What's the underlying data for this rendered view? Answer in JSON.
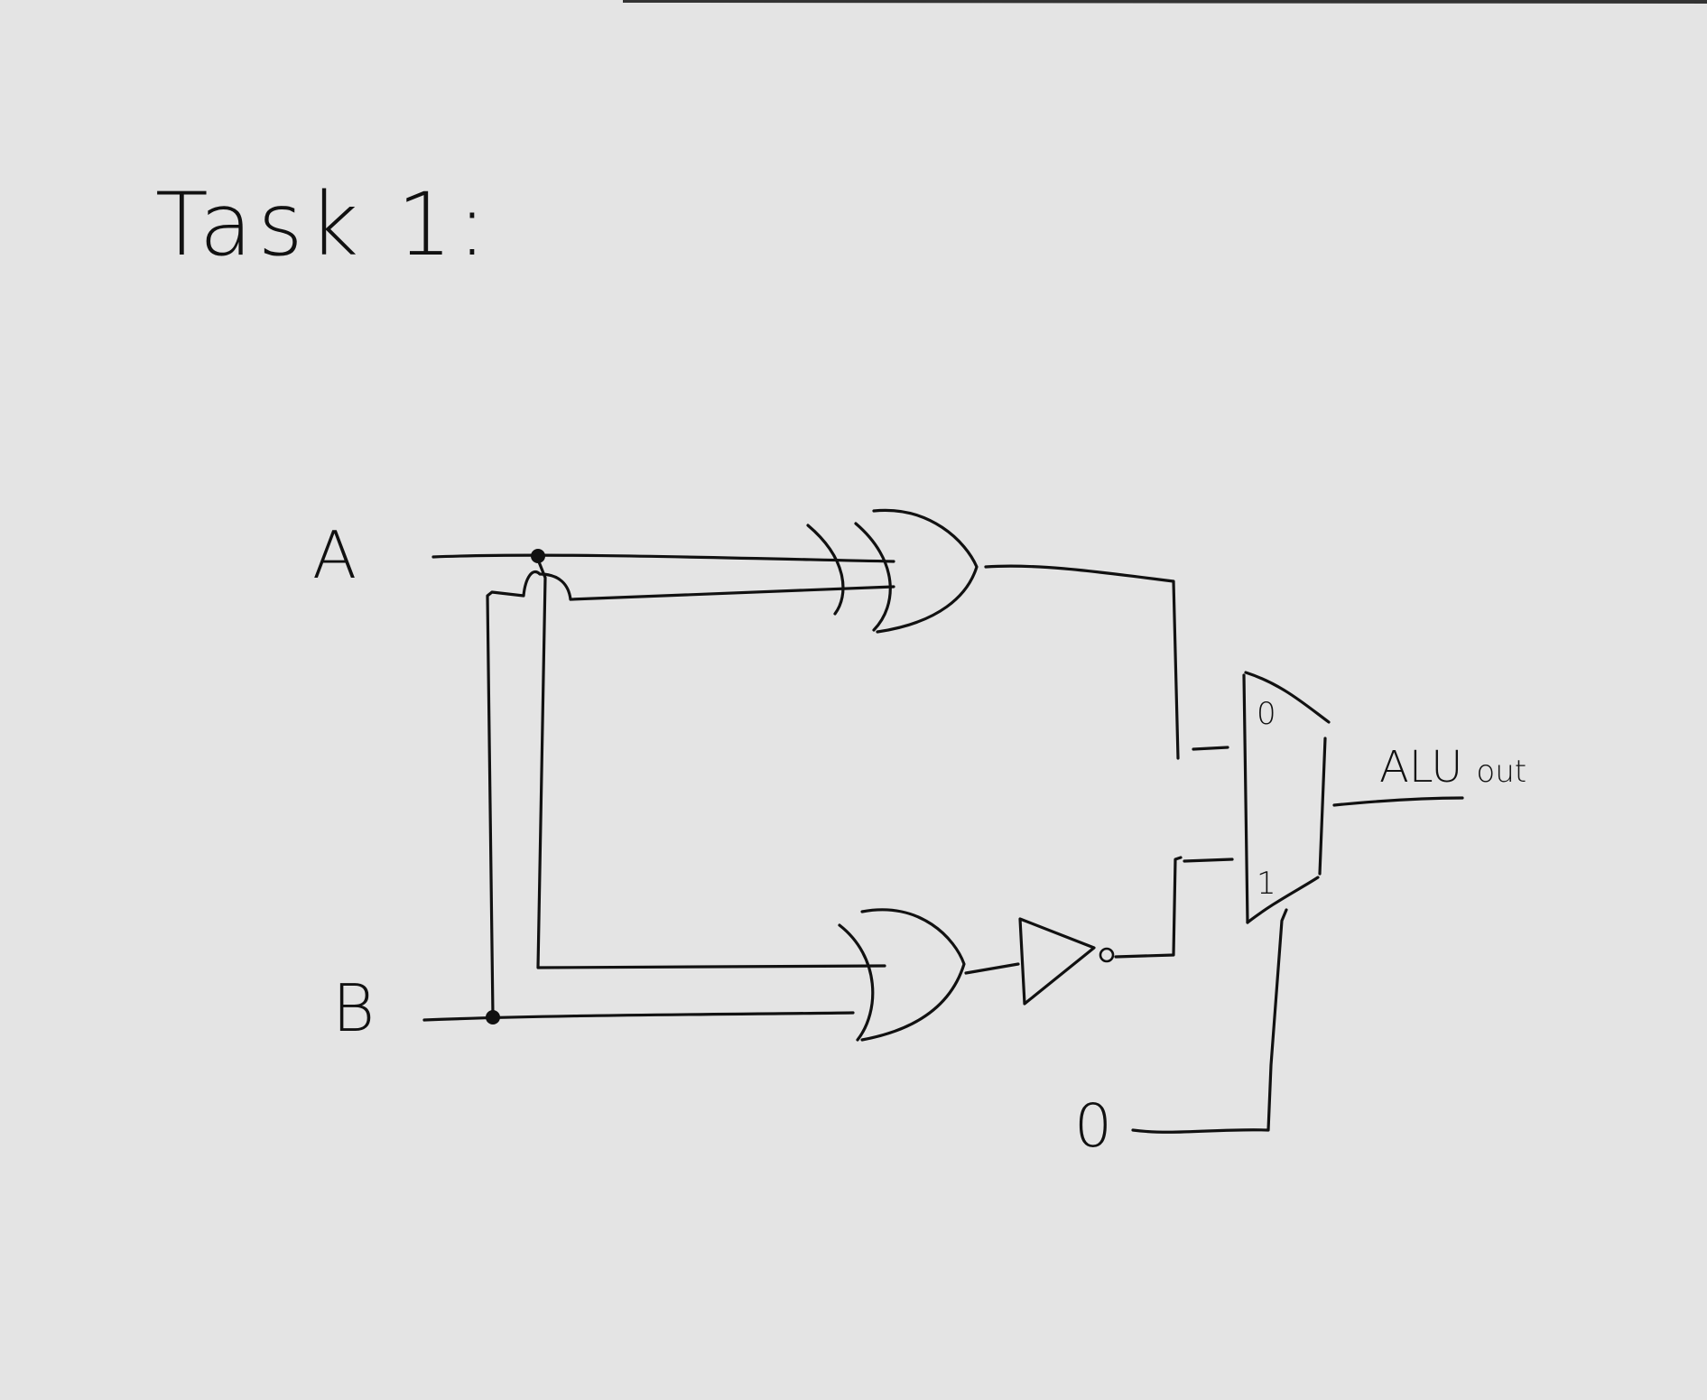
{
  "title": "Task 1:",
  "inputs": {
    "a": "A",
    "b": "B",
    "zero": "0"
  },
  "mux": {
    "input0_label": "0",
    "input1_label": "1"
  },
  "output": {
    "main": "ALU",
    "suffix": "out"
  },
  "inverter_bubble": "o"
}
